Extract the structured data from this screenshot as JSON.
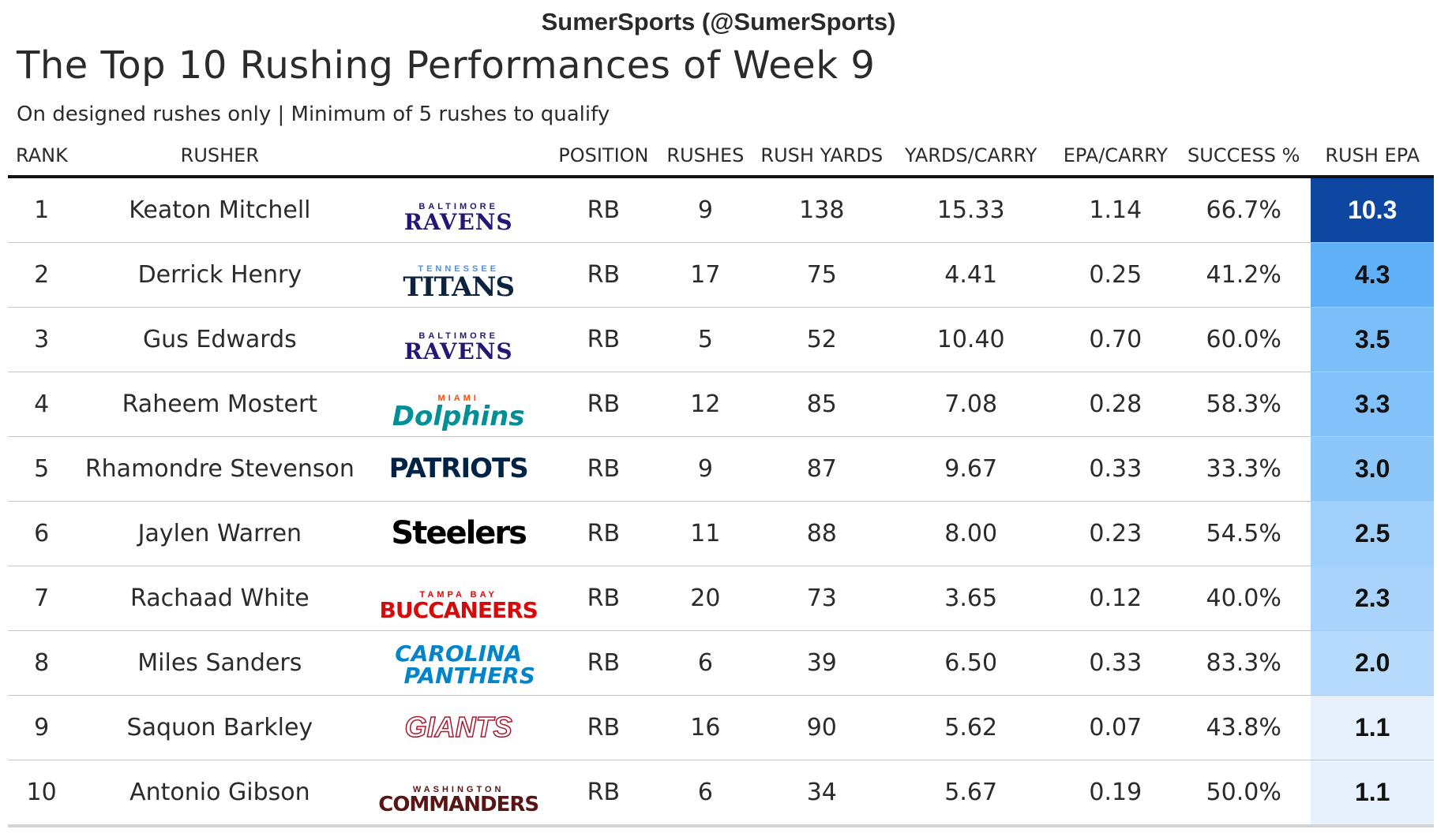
{
  "header": {
    "watermark": "SumerSports (@SumerSports)",
    "title": "The Top 10 Rushing Performances of Week 9",
    "subtitle": "On designed rushes only | Minimum of 5 rushes to qualify"
  },
  "columns": {
    "rank": "RANK",
    "rusher": "RUSHER",
    "position": "POSITION",
    "rushes": "RUSHES",
    "rush_yards": "RUSH YARDS",
    "yards_carry": "YARDS/CARRY",
    "epa_carry": "EPA/CARRY",
    "success": "SUCCESS %",
    "rush_epa": "RUSH EPA"
  },
  "logos": {
    "ravens": {
      "top": "BALTIMORE",
      "main": "RAVENS",
      "color": "#241773",
      "icon": "ravens-logo"
    },
    "titans": {
      "top": "TENNESSEE",
      "main": "TITANS",
      "color": "#0C2340",
      "accent": "#4B92DB",
      "icon": "titans-logo"
    },
    "dolphins": {
      "top": "MIAMI",
      "main": "Dolphins",
      "color": "#008E97",
      "accent": "#FC4C02",
      "icon": "dolphins-logo"
    },
    "patriots": {
      "main": "PATRIOTS",
      "color": "#002244",
      "icon": "patriots-logo"
    },
    "steelers": {
      "main": "Steelers",
      "color": "#000000",
      "icon": "steelers-logo"
    },
    "buccaneers": {
      "top": "TAMPA BAY",
      "main": "BUCCANEERS",
      "color": "#D50A0A",
      "icon": "buccaneers-logo"
    },
    "panthers": {
      "top": "CAROLINA",
      "main": "PANTHERS",
      "color": "#0085CA",
      "icon": "panthers-logo"
    },
    "giants": {
      "main": "GIANTS",
      "color": "#A71930",
      "icon": "giants-logo"
    },
    "commanders": {
      "top": "WASHINGTON",
      "main": "COMMANDERS",
      "color": "#5A1414",
      "icon": "commanders-logo"
    }
  },
  "chart_data": {
    "type": "table",
    "title": "The Top 10 Rushing Performances of Week 9",
    "subtitle": "On designed rushes only | Minimum of 5 rushes to qualify",
    "columns": [
      "RANK",
      "RUSHER",
      "POSITION",
      "RUSHES",
      "RUSH YARDS",
      "YARDS/CARRY",
      "EPA/CARRY",
      "SUCCESS %",
      "RUSH EPA"
    ],
    "color_scale": {
      "column": "RUSH EPA",
      "low": "#e6f1fd",
      "mid": "#5fb0f7",
      "high": "#0d47a1"
    },
    "rows": [
      {
        "rank": "1",
        "rusher": "Keaton Mitchell",
        "team": "ravens",
        "position": "RB",
        "rushes": "9",
        "rush_yards": "138",
        "yards_carry": "15.33",
        "epa_carry": "1.14",
        "success": "66.7%",
        "rush_epa": "10.3",
        "epa_value": 10.3
      },
      {
        "rank": "2",
        "rusher": "Derrick Henry",
        "team": "titans",
        "position": "RB",
        "rushes": "17",
        "rush_yards": "75",
        "yards_carry": "4.41",
        "epa_carry": "0.25",
        "success": "41.2%",
        "rush_epa": "4.3",
        "epa_value": 4.3
      },
      {
        "rank": "3",
        "rusher": "Gus Edwards",
        "team": "ravens",
        "position": "RB",
        "rushes": "5",
        "rush_yards": "52",
        "yards_carry": "10.40",
        "epa_carry": "0.70",
        "success": "60.0%",
        "rush_epa": "3.5",
        "epa_value": 3.5
      },
      {
        "rank": "4",
        "rusher": "Raheem Mostert",
        "team": "dolphins",
        "position": "RB",
        "rushes": "12",
        "rush_yards": "85",
        "yards_carry": "7.08",
        "epa_carry": "0.28",
        "success": "58.3%",
        "rush_epa": "3.3",
        "epa_value": 3.3
      },
      {
        "rank": "5",
        "rusher": "Rhamondre Stevenson",
        "team": "patriots",
        "position": "RB",
        "rushes": "9",
        "rush_yards": "87",
        "yards_carry": "9.67",
        "epa_carry": "0.33",
        "success": "33.3%",
        "rush_epa": "3.0",
        "epa_value": 3.0
      },
      {
        "rank": "6",
        "rusher": "Jaylen Warren",
        "team": "steelers",
        "position": "RB",
        "rushes": "11",
        "rush_yards": "88",
        "yards_carry": "8.00",
        "epa_carry": "0.23",
        "success": "54.5%",
        "rush_epa": "2.5",
        "epa_value": 2.5
      },
      {
        "rank": "7",
        "rusher": "Rachaad White",
        "team": "buccaneers",
        "position": "RB",
        "rushes": "20",
        "rush_yards": "73",
        "yards_carry": "3.65",
        "epa_carry": "0.12",
        "success": "40.0%",
        "rush_epa": "2.3",
        "epa_value": 2.3
      },
      {
        "rank": "8",
        "rusher": "Miles Sanders",
        "team": "panthers",
        "position": "RB",
        "rushes": "6",
        "rush_yards": "39",
        "yards_carry": "6.50",
        "epa_carry": "0.33",
        "success": "83.3%",
        "rush_epa": "2.0",
        "epa_value": 2.0
      },
      {
        "rank": "9",
        "rusher": "Saquon Barkley",
        "team": "giants",
        "position": "RB",
        "rushes": "16",
        "rush_yards": "90",
        "yards_carry": "5.62",
        "epa_carry": "0.07",
        "success": "43.8%",
        "rush_epa": "1.1",
        "epa_value": 1.1
      },
      {
        "rank": "10",
        "rusher": "Antonio Gibson",
        "team": "commanders",
        "position": "RB",
        "rushes": "6",
        "rush_yards": "34",
        "yards_carry": "5.67",
        "epa_carry": "0.19",
        "success": "50.0%",
        "rush_epa": "1.1",
        "epa_value": 1.1
      }
    ]
  }
}
